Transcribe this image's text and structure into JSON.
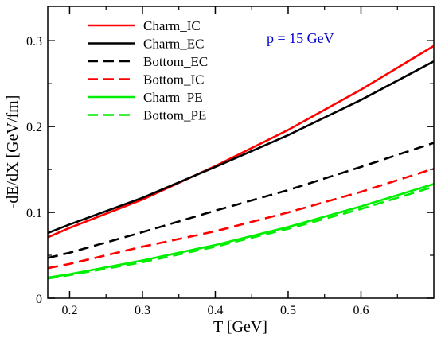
{
  "chart_data": {
    "type": "line",
    "xlabel": "T [GeV]",
    "ylabel": "-dE/dX  [GeV/fm]",
    "xlim": [
      0.17,
      0.7
    ],
    "ylim": [
      0,
      0.34
    ],
    "x_ticks": [
      "0.2",
      "0.3",
      "0.4",
      "0.5",
      "0.6"
    ],
    "y_ticks": [
      "0",
      "0.1",
      "0.2",
      "0.3"
    ],
    "grid": false,
    "legend_position": "top-left",
    "annotation": "p = 15 GeV",
    "series": [
      {
        "name": "Charm_IC",
        "color": "#ff0000",
        "dash": "solid",
        "x": [
          0.17,
          0.2,
          0.3,
          0.4,
          0.5,
          0.6,
          0.7
        ],
        "y": [
          0.071,
          0.082,
          0.115,
          0.154,
          0.196,
          0.243,
          0.294
        ]
      },
      {
        "name": "Charm_EC",
        "color": "#000000",
        "dash": "solid",
        "x": [
          0.17,
          0.2,
          0.3,
          0.4,
          0.5,
          0.6,
          0.7
        ],
        "y": [
          0.076,
          0.086,
          0.117,
          0.153,
          0.19,
          0.231,
          0.276
        ]
      },
      {
        "name": "Bottom_EC",
        "color": "#000000",
        "dash": "dashed",
        "x": [
          0.17,
          0.2,
          0.3,
          0.4,
          0.5,
          0.6,
          0.7
        ],
        "y": [
          0.047,
          0.053,
          0.077,
          0.102,
          0.126,
          0.153,
          0.181
        ]
      },
      {
        "name": "Bottom_IC",
        "color": "#ff0000",
        "dash": "dashed",
        "x": [
          0.17,
          0.2,
          0.3,
          0.4,
          0.5,
          0.6,
          0.7
        ],
        "y": [
          0.035,
          0.04,
          0.06,
          0.078,
          0.1,
          0.124,
          0.151
        ]
      },
      {
        "name": "Charm_PE",
        "color": "#00ee00",
        "dash": "solid",
        "x": [
          0.17,
          0.2,
          0.3,
          0.4,
          0.5,
          0.6,
          0.7
        ],
        "y": [
          0.024,
          0.028,
          0.044,
          0.062,
          0.083,
          0.107,
          0.133
        ]
      },
      {
        "name": "Bottom_PE",
        "color": "#00ee00",
        "dash": "dashed",
        "x": [
          0.17,
          0.2,
          0.3,
          0.4,
          0.5,
          0.6,
          0.7
        ],
        "y": [
          0.023,
          0.027,
          0.042,
          0.06,
          0.081,
          0.104,
          0.13
        ]
      }
    ]
  }
}
